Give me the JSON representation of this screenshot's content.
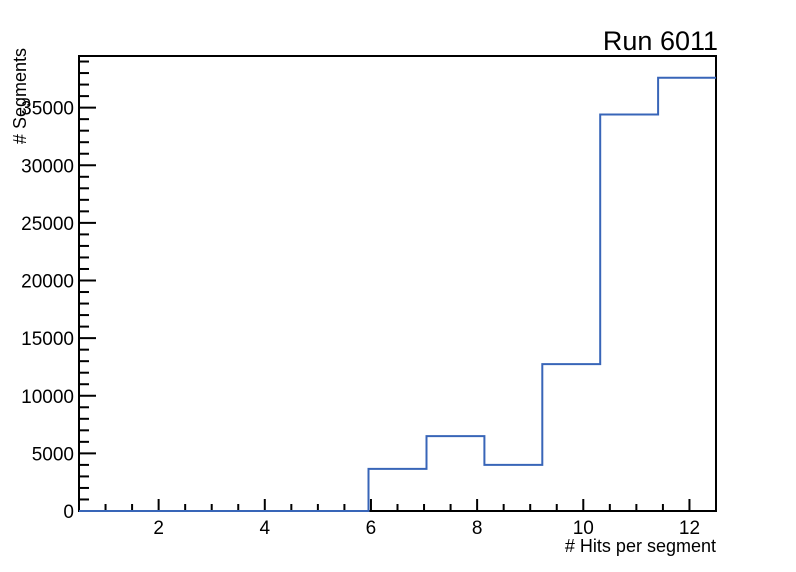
{
  "chart_data": {
    "type": "histogram-step",
    "title": "Run 6011",
    "xlabel": "# Hits per segment",
    "ylabel": "# Segments",
    "xlim": [
      0.5,
      12.5
    ],
    "ylim": [
      0,
      39480
    ],
    "n_bins": 11,
    "bin_edges": [
      0.5,
      1.5909,
      2.6818,
      3.7727,
      4.8636,
      5.9545,
      7.0455,
      8.1364,
      9.2273,
      10.3182,
      11.4091,
      12.5
    ],
    "counts": [
      0,
      0,
      0,
      0,
      0,
      3650,
      6500,
      4000,
      12750,
      34400,
      37600
    ],
    "x_ticks_major": [
      2,
      4,
      6,
      8,
      10,
      12
    ],
    "x_tick_minor_step": 0.5,
    "y_ticks_major": [
      0,
      5000,
      10000,
      15000,
      20000,
      25000,
      30000,
      35000
    ],
    "y_tick_minor_step": 1000,
    "grid": false,
    "legend": "none",
    "line_color": "#3865b8",
    "axis_color": "#000000",
    "background_color": "#ffffff"
  }
}
